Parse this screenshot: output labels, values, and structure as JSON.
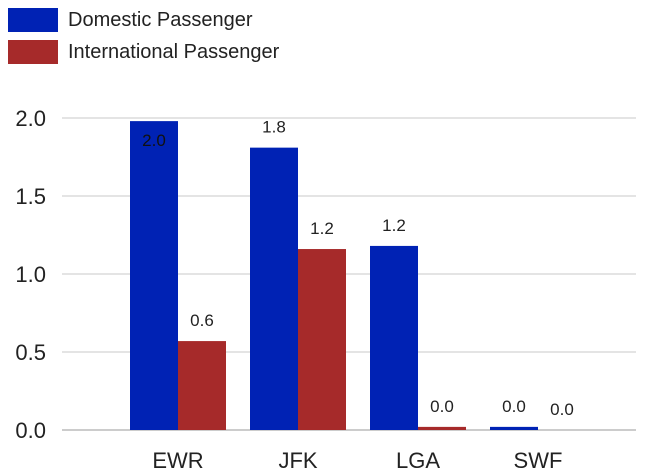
{
  "chart_data": {
    "type": "bar",
    "categories": [
      "EWR",
      "JFK",
      "LGA",
      "SWF"
    ],
    "series": [
      {
        "name": "Domestic Passenger",
        "color": "#0022b4",
        "values": [
          1.98,
          1.81,
          1.18,
          0.02
        ],
        "labels": [
          "2.0",
          "1.8",
          "1.2",
          "0.0"
        ]
      },
      {
        "name": "International Passenger",
        "color": "#a62a2a",
        "values": [
          0.57,
          1.16,
          0.02,
          0.0
        ],
        "labels": [
          "0.6",
          "1.2",
          "0.0",
          "0.0"
        ]
      }
    ],
    "yticks": [
      "0.0",
      "0.5",
      "1.0",
      "1.5",
      "2.0"
    ],
    "ylim": [
      0,
      2.0
    ],
    "grid": true,
    "legend_position": "top-left",
    "title": "",
    "xlabel": "",
    "ylabel": ""
  }
}
